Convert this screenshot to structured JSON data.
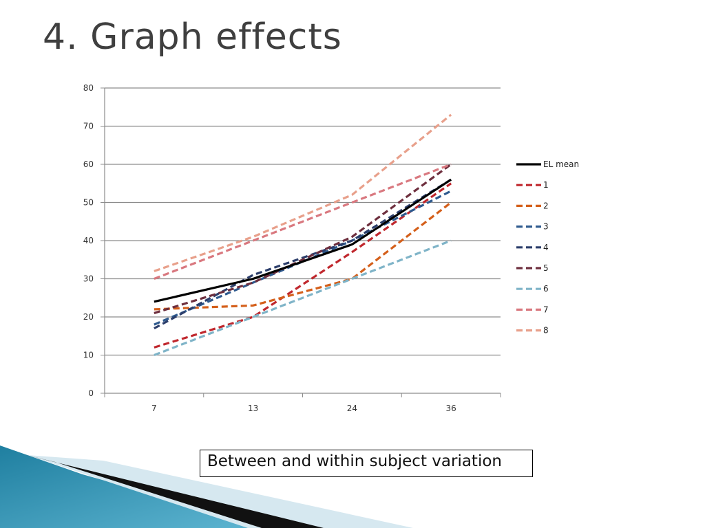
{
  "slide": {
    "title": "4. Graph effects",
    "caption": "Between and within subject variation"
  },
  "chart_data": {
    "type": "line",
    "title": "",
    "xlabel": "",
    "ylabel": "",
    "categories": [
      "7",
      "13",
      "24",
      "36"
    ],
    "ylim": [
      0,
      80
    ],
    "yticks": [
      0,
      10,
      20,
      30,
      40,
      50,
      60,
      70,
      80
    ],
    "grid": true,
    "legend_position": "right",
    "series": [
      {
        "name": "EL mean",
        "values": [
          24,
          30,
          39,
          56
        ],
        "color": "#000000",
        "dash": "solid"
      },
      {
        "name": "1",
        "values": [
          12,
          20,
          37,
          55
        ],
        "color": "#c0272d",
        "dash": "dashed"
      },
      {
        "name": "2",
        "values": [
          22,
          23,
          30,
          50
        ],
        "color": "#d45f1a",
        "dash": "dashed"
      },
      {
        "name": "3",
        "values": [
          18,
          29,
          40,
          53
        ],
        "color": "#2e5a8e",
        "dash": "dashed"
      },
      {
        "name": "4",
        "values": [
          17,
          31,
          40,
          56
        ],
        "color": "#2c3e6b",
        "dash": "dashed"
      },
      {
        "name": "5",
        "values": [
          21,
          29,
          41,
          60
        ],
        "color": "#6e2f3e",
        "dash": "dashed"
      },
      {
        "name": "6",
        "values": [
          10,
          20,
          30,
          40
        ],
        "color": "#7fb4c8",
        "dash": "dashed"
      },
      {
        "name": "7",
        "values": [
          30,
          40,
          50,
          60
        ],
        "color": "#d9787f",
        "dash": "dashed"
      },
      {
        "name": "8",
        "values": [
          32,
          41,
          52,
          73
        ],
        "color": "#e8a08b",
        "dash": "dashed"
      }
    ]
  }
}
